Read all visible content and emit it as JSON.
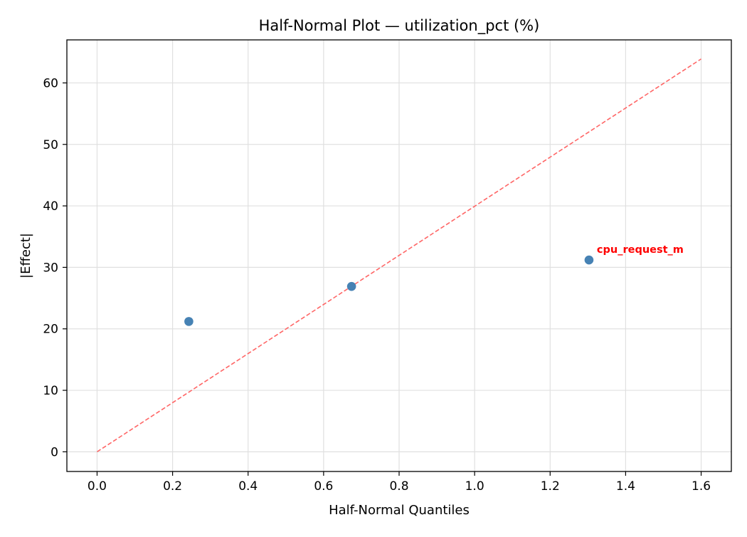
{
  "chart_data": {
    "type": "scatter",
    "title": "Half-Normal Plot — utilization_pct (%)",
    "xlabel": "Half-Normal Quantiles",
    "ylabel": "|Effect|",
    "xlim": [
      -0.08,
      1.68
    ],
    "ylim": [
      -3.2,
      67.0
    ],
    "xticks": [
      0.0,
      0.2,
      0.4,
      0.6,
      0.8,
      1.0,
      1.2,
      1.4,
      1.6
    ],
    "xtick_labels": [
      "0.0",
      "0.2",
      "0.4",
      "0.6",
      "0.8",
      "1.0",
      "1.2",
      "1.4",
      "1.6"
    ],
    "yticks": [
      0,
      10,
      20,
      30,
      40,
      50,
      60
    ],
    "ytick_labels": [
      "0",
      "10",
      "20",
      "30",
      "40",
      "50",
      "60"
    ],
    "grid": true,
    "points": [
      {
        "x": 0.243,
        "y": 21.2,
        "label": ""
      },
      {
        "x": 0.674,
        "y": 26.9,
        "label": ""
      },
      {
        "x": 1.303,
        "y": 31.2,
        "label": "cpu_request_m"
      }
    ],
    "reference_line": {
      "x": [
        0.0,
        1.6
      ],
      "y": [
        0.0,
        63.9
      ],
      "style": "dashed"
    },
    "colors": {
      "points": "#4682b4",
      "reference_line": "#ff6666",
      "label": "#ff0000"
    }
  }
}
